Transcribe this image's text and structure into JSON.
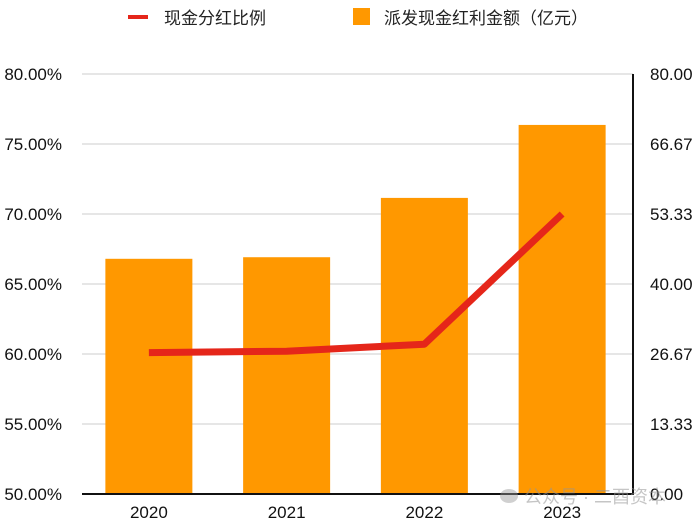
{
  "legend": {
    "line_label": "现金分红比例",
    "bar_label": "派发现金红利金额（亿元）"
  },
  "colors": {
    "bar": "#FF9800",
    "line": "#E5261A",
    "grid": "#CCCCCC",
    "axis": "#111111"
  },
  "watermark": "公众号 · 二酉资本",
  "chart_data": {
    "type": "bar+line",
    "title": "",
    "categories": [
      "2020",
      "2021",
      "2022",
      "2023"
    ],
    "series": [
      {
        "name": "派发现金红利金额（亿元）",
        "type": "bar",
        "axis": "right",
        "values": [
          44.8,
          45.1,
          56.4,
          70.3
        ]
      },
      {
        "name": "现金分红比例",
        "type": "line",
        "axis": "left",
        "values": [
          60.1,
          60.2,
          60.7,
          70.0
        ],
        "unit": "%"
      }
    ],
    "left_axis": {
      "ylim": [
        50,
        80
      ],
      "ticks": [
        "50.00%",
        "55.00%",
        "60.00%",
        "65.00%",
        "70.00%",
        "75.00%",
        "80.00%"
      ]
    },
    "right_axis": {
      "ylim": [
        0,
        80
      ],
      "ticks": [
        "0.00",
        "13.33",
        "26.67",
        "40.00",
        "53.33",
        "66.67",
        "80.00"
      ]
    },
    "xlabel": "",
    "ylabel_left": "",
    "ylabel_right": "",
    "grid": true,
    "legend_position": "top"
  }
}
